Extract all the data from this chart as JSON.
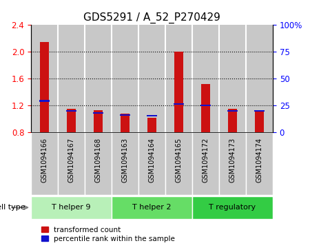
{
  "title": "GDS5291 / A_52_P270429",
  "samples": [
    "GSM1094166",
    "GSM1094167",
    "GSM1094168",
    "GSM1094163",
    "GSM1094164",
    "GSM1094165",
    "GSM1094172",
    "GSM1094173",
    "GSM1094174"
  ],
  "red_values": [
    2.15,
    1.15,
    1.13,
    1.08,
    1.02,
    2.0,
    1.52,
    1.15,
    1.13
  ],
  "blue_values": [
    1.27,
    1.12,
    1.09,
    1.06,
    1.05,
    1.22,
    1.2,
    1.12,
    1.12
  ],
  "ylim_left": [
    0.8,
    2.4
  ],
  "ylim_right": [
    0,
    100
  ],
  "yticks_left": [
    0.8,
    1.2,
    1.6,
    2.0,
    2.4
  ],
  "yticks_right": [
    0,
    25,
    50,
    75,
    100
  ],
  "ytick_labels_right": [
    "0",
    "25",
    "50",
    "75",
    "100%"
  ],
  "cell_type_groups": [
    {
      "label": "T helper 9",
      "indices": [
        0,
        1,
        2
      ],
      "color": "#b8f0b8"
    },
    {
      "label": "T helper 2",
      "indices": [
        3,
        4,
        5
      ],
      "color": "#66dd66"
    },
    {
      "label": "T regulatory",
      "indices": [
        6,
        7,
        8
      ],
      "color": "#33cc44"
    }
  ],
  "bar_width": 0.35,
  "red_color": "#cc1111",
  "blue_color": "#1111cc",
  "baseline": 0.8,
  "legend_red": "transformed count",
  "legend_blue": "percentile rank within the sample",
  "cell_type_label": "cell type",
  "bar_bg_color": "#c8c8c8",
  "title_fontsize": 11,
  "tick_fontsize": 8.5,
  "label_fontsize": 8
}
